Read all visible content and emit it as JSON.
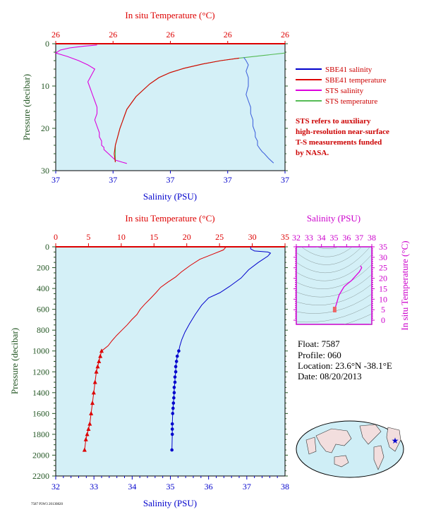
{
  "colors": {
    "plot_bg": "#d4f0f7",
    "salinity": "#0000cc",
    "salinity_hr": "#4466dd",
    "temperature": "#dd0000",
    "sts_salinity": "#dd00dd",
    "sts_temperature": "#55bb55",
    "pressure_axis": "#225522",
    "ts_axis": "#cc00cc"
  },
  "float_info": {
    "float": "Float:  7587",
    "profile": "Profile:  060",
    "location": "Location:  23.6°N  -38.1°E",
    "date": "Date:  08/20/2013"
  },
  "footnote": "7587 P3W3 20130820",
  "note_lines": [
    "STS refers to auxiliary",
    "high-resolution near-surface",
    "T-S measurements funded",
    "by NASA."
  ],
  "chart_data": [
    {
      "type": "line",
      "id": "near-surface",
      "title": "",
      "top_axis_label": "In situ Temperature (°C)",
      "top_tick_labels": [
        "26",
        "26",
        "26",
        "26",
        "26"
      ],
      "bottom_axis_label": "Salinity (PSU)",
      "bottom_tick_labels": [
        "37",
        "37",
        "37",
        "37",
        "37"
      ],
      "ylabel": "Pressure (decibar)",
      "y_ticks": [
        0,
        10,
        20,
        30
      ],
      "ylim": [
        30,
        0
      ],
      "xlim_norm": [
        0,
        1
      ],
      "legend": [
        "SBE41 salinity",
        "SBE41 temperature",
        "STS salinity",
        "STS temperature"
      ],
      "note": "STS refers to auxiliary high-resolution near-surface T-S measurements funded by NASA.",
      "series": [
        {
          "name": "STS salinity",
          "x": [
            0.18,
            0.12,
            0.06,
            0.02,
            0.0,
            0.05,
            0.1,
            0.14,
            0.17,
            0.16,
            0.15,
            0.14,
            0.15,
            0.16,
            0.17,
            0.18,
            0.18,
            0.17,
            0.18,
            0.19,
            0.19,
            0.2,
            0.2,
            0.21,
            0.21,
            0.22,
            0.23,
            0.24,
            0.25,
            0.26,
            0.29,
            0.31
          ],
          "y": [
            0.3,
            0.6,
            1.0,
            1.5,
            2.2,
            3.0,
            4.0,
            5.0,
            6.0,
            7.0,
            8.0,
            9.0,
            10.5,
            12.0,
            13.5,
            15.0,
            16.5,
            18.0,
            19.5,
            21.0,
            22.0,
            23.0,
            24.0,
            24.5,
            25.0,
            25.5,
            26.0,
            26.5,
            27.0,
            27.5,
            28.0,
            28.3
          ]
        },
        {
          "name": "STS temperature",
          "x": [
            1.0,
            0.9,
            0.8,
            0.72,
            0.64,
            0.56,
            0.5,
            0.45,
            0.41,
            0.38,
            0.35,
            0.33,
            0.31,
            0.3,
            0.29,
            0.28,
            0.27,
            0.26,
            0.26,
            0.26
          ],
          "y": [
            2.2,
            2.8,
            3.4,
            4.0,
            4.8,
            5.8,
            6.8,
            8.0,
            9.5,
            11.0,
            12.5,
            14.0,
            15.5,
            17.0,
            18.5,
            20.0,
            22.0,
            24.0,
            26.0,
            28.0
          ]
        },
        {
          "name": "SBE41 temperature",
          "x": [
            0.8,
            0.72,
            0.64,
            0.56,
            0.5,
            0.45,
            0.41,
            0.38,
            0.35,
            0.33,
            0.31,
            0.3,
            0.29,
            0.28,
            0.27,
            0.26,
            0.255,
            0.26
          ],
          "y": [
            3.4,
            4.0,
            4.8,
            5.8,
            6.8,
            8.0,
            9.5,
            11.0,
            12.5,
            14.0,
            15.5,
            17.0,
            18.5,
            20.0,
            22.0,
            24.0,
            26.0,
            28.0
          ]
        },
        {
          "name": "SBE41 salinity",
          "x": [
            0.82,
            0.83,
            0.84,
            0.83,
            0.84,
            0.84,
            0.83,
            0.84,
            0.85,
            0.85,
            0.86,
            0.86,
            0.87,
            0.87,
            0.88,
            0.88,
            0.89,
            0.9,
            0.91,
            0.92,
            0.93,
            0.94,
            0.95
          ],
          "y": [
            3.2,
            4.0,
            5.0,
            6.5,
            8.0,
            10.0,
            12.0,
            13.5,
            15.0,
            16.5,
            18.0,
            19.5,
            21.0,
            22.0,
            23.0,
            24.0,
            24.8,
            25.5,
            26.0,
            26.6,
            27.2,
            27.7,
            28.2
          ]
        }
      ]
    },
    {
      "type": "line",
      "id": "full-profile",
      "title": "",
      "top_axis_label": "In situ Temperature (°C)",
      "bottom_axis_label": "Salinity (PSU)",
      "ylabel": "Pressure (decibar)",
      "temp_ticks": [
        0,
        5,
        10,
        15,
        20,
        25,
        30,
        35
      ],
      "sal_ticks": [
        32,
        33,
        34,
        35,
        36,
        37,
        38
      ],
      "pressure_ticks": [
        0,
        200,
        400,
        600,
        800,
        1000,
        1200,
        1400,
        1600,
        1800,
        2000,
        2200
      ],
      "temp_lim": [
        0,
        35
      ],
      "sal_lim": [
        32,
        38
      ],
      "ylim": [
        2200,
        0
      ],
      "series": [
        {
          "name": "Temperature",
          "axis": "top",
          "marker": "triangle",
          "x": [
            26.0,
            25.6,
            24.0,
            22.0,
            20.5,
            19.2,
            18.3,
            17.1,
            16.0,
            15.3,
            14.4,
            13.6,
            12.9,
            12.4,
            11.6,
            10.9,
            10.1,
            9.3,
            8.6,
            8.0,
            7.4,
            7.0,
            6.8,
            6.6,
            6.4,
            6.2,
            6.0,
            5.8,
            5.6,
            5.4,
            5.2,
            5.0,
            4.8,
            4.6,
            4.4
          ],
          "y": [
            0,
            30,
            70,
            120,
            180,
            240,
            290,
            340,
            390,
            440,
            500,
            550,
            600,
            650,
            700,
            750,
            800,
            850,
            900,
            950,
            980,
            1000,
            1050,
            1100,
            1150,
            1200,
            1300,
            1400,
            1500,
            1600,
            1700,
            1750,
            1800,
            1850,
            1950
          ]
        },
        {
          "name": "Salinity",
          "axis": "bottom",
          "marker": "circle",
          "x": [
            37.1,
            37.1,
            37.2,
            37.55,
            37.62,
            37.55,
            37.3,
            37.05,
            36.85,
            36.55,
            36.3,
            36.0,
            35.82,
            35.65,
            35.5,
            35.38,
            35.3,
            35.25,
            35.22,
            35.18,
            35.16,
            35.14,
            35.14,
            35.12,
            35.12,
            35.1,
            35.1,
            35.09,
            35.08,
            35.07,
            35.06,
            35.05,
            35.05,
            35.05,
            35.04
          ],
          "y": [
            0,
            20,
            40,
            50,
            60,
            90,
            150,
            220,
            300,
            380,
            440,
            490,
            560,
            650,
            740,
            820,
            890,
            950,
            1000,
            1050,
            1100,
            1150,
            1200,
            1250,
            1300,
            1350,
            1400,
            1450,
            1500,
            1550,
            1600,
            1700,
            1750,
            1800,
            1950
          ]
        }
      ]
    },
    {
      "type": "line",
      "id": "ts-diagram",
      "title": "",
      "top_axis_label": "Salinity (PSU)",
      "right_axis_label": "In situ Temperature (°C)",
      "sal_ticks": [
        32,
        33,
        34,
        35,
        36,
        37,
        38
      ],
      "temp_ticks": [
        0,
        5,
        10,
        15,
        20,
        25,
        30,
        35
      ],
      "sal_lim": [
        32,
        38
      ],
      "temp_lim": [
        -2,
        35
      ],
      "series": [
        {
          "name": "T-S",
          "x": [
            37.1,
            37.2,
            37.0,
            36.7,
            36.4,
            36.1,
            35.8,
            35.6,
            35.4,
            35.3,
            35.2,
            35.15,
            35.1,
            35.08,
            35.05
          ],
          "y": [
            26.0,
            25.0,
            23.0,
            21.0,
            19.0,
            17.5,
            16.0,
            14.0,
            12.0,
            10.0,
            8.0,
            7.0,
            6.0,
            5.0,
            4.4
          ]
        }
      ]
    }
  ]
}
